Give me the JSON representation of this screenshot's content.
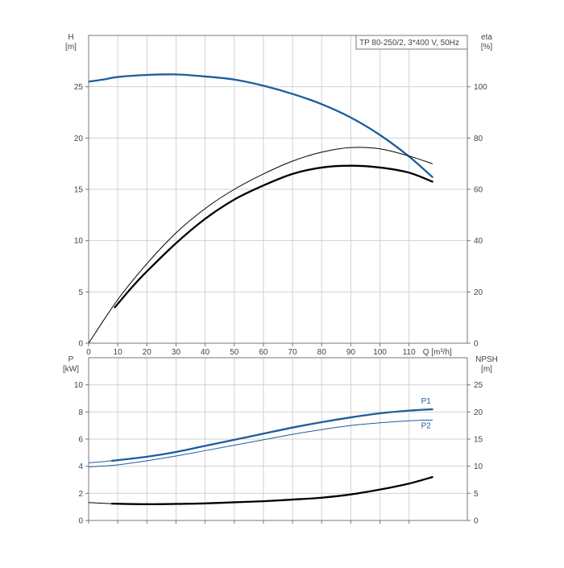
{
  "chart_data": [
    {
      "type": "line",
      "title": "TP 80-250/2, 3*400 V, 50Hz",
      "xlabel": "Q [m³/h]",
      "ylabel_left": [
        "H",
        "[m]"
      ],
      "ylabel_right": [
        "eta",
        "[%]"
      ],
      "xlim": [
        0,
        130
      ],
      "x_ticks": [
        0,
        10,
        20,
        30,
        40,
        50,
        60,
        70,
        80,
        90,
        100,
        110
      ],
      "ylim_left": [
        0,
        30
      ],
      "y_ticks_left": [
        0,
        5,
        10,
        15,
        20,
        25
      ],
      "ylim_right": [
        0,
        120
      ],
      "y_ticks_right": [
        0,
        20,
        40,
        60,
        80,
        100
      ],
      "grid": true,
      "series": [
        {
          "axis": "left",
          "color": "#1b5e9b",
          "style": "thick",
          "name": "",
          "x": [
            0,
            5,
            10,
            20,
            30,
            40,
            50,
            60,
            70,
            80,
            90,
            100,
            110,
            118
          ],
          "values": [
            25.5,
            25.7,
            25.95,
            26.15,
            26.2,
            26.0,
            25.7,
            25.1,
            24.3,
            23.3,
            22.0,
            20.3,
            18.2,
            16.2
          ]
        },
        {
          "axis": "right",
          "color": "#000000",
          "style": "thin",
          "name": "",
          "x": [
            0,
            10,
            20,
            30,
            40,
            50,
            60,
            70,
            80,
            90,
            100,
            110,
            118
          ],
          "values": [
            0,
            17,
            31,
            43,
            52.5,
            60,
            66,
            71,
            74.5,
            76.3,
            75.8,
            73,
            70
          ]
        },
        {
          "axis": "right",
          "color": "#000000",
          "style": "thick",
          "name": "",
          "x": [
            9,
            15,
            20,
            30,
            40,
            50,
            60,
            70,
            80,
            90,
            100,
            110,
            118
          ],
          "values": [
            14,
            22,
            28,
            39,
            48.5,
            56,
            61.5,
            66,
            68.5,
            69.2,
            68.5,
            66.5,
            63
          ]
        }
      ]
    },
    {
      "type": "line",
      "title": "",
      "xlabel": "",
      "ylabel_left": [
        "P",
        "[kW]"
      ],
      "ylabel_right": [
        "NPSH",
        "[m]"
      ],
      "xlim": [
        0,
        130
      ],
      "x_ticks": [
        0,
        10,
        20,
        30,
        40,
        50,
        60,
        70,
        80,
        90,
        100,
        110
      ],
      "ylim_left": [
        0,
        12
      ],
      "y_ticks_left": [
        0,
        2,
        4,
        6,
        8,
        10
      ],
      "ylim_right": [
        0,
        30
      ],
      "y_ticks_right": [
        0,
        5,
        10,
        15,
        20,
        25
      ],
      "grid": true,
      "series": [
        {
          "axis": "left",
          "color": "#1b5e9b",
          "style": "thin",
          "name": "",
          "x": [
            0,
            8,
            20,
            30,
            40,
            50,
            60,
            70,
            80,
            90,
            100,
            110,
            118
          ],
          "values": [
            4.25,
            4.4,
            4.7,
            5.05,
            5.5,
            5.95,
            6.4,
            6.85,
            7.25,
            7.6,
            7.9,
            8.1,
            8.2
          ]
        },
        {
          "axis": "left",
          "color": "#1b5e9b",
          "style": "thick",
          "name": "P1",
          "x": [
            8,
            20,
            30,
            40,
            50,
            60,
            70,
            80,
            90,
            100,
            110,
            118
          ],
          "values": [
            4.4,
            4.7,
            5.05,
            5.5,
            5.95,
            6.4,
            6.85,
            7.25,
            7.6,
            7.9,
            8.1,
            8.2
          ]
        },
        {
          "axis": "left",
          "color": "#1b5e9b",
          "style": "thin",
          "name": "P2",
          "x": [
            0,
            10,
            20,
            30,
            40,
            50,
            60,
            70,
            80,
            90,
            100,
            110,
            118
          ],
          "values": [
            3.95,
            4.1,
            4.4,
            4.75,
            5.15,
            5.55,
            5.95,
            6.35,
            6.7,
            7.0,
            7.2,
            7.35,
            7.4
          ]
        },
        {
          "axis": "right",
          "color": "#000000",
          "style": "thin",
          "name": "",
          "x": [
            0,
            8
          ],
          "values": [
            3.3,
            3.1
          ]
        },
        {
          "axis": "right",
          "color": "#000000",
          "style": "thick",
          "name": "",
          "x": [
            8,
            20,
            30,
            40,
            50,
            60,
            70,
            80,
            90,
            100,
            110,
            118
          ],
          "values": [
            3.1,
            3.0,
            3.05,
            3.15,
            3.35,
            3.55,
            3.85,
            4.2,
            4.8,
            5.7,
            6.8,
            8.0
          ]
        }
      ]
    }
  ]
}
